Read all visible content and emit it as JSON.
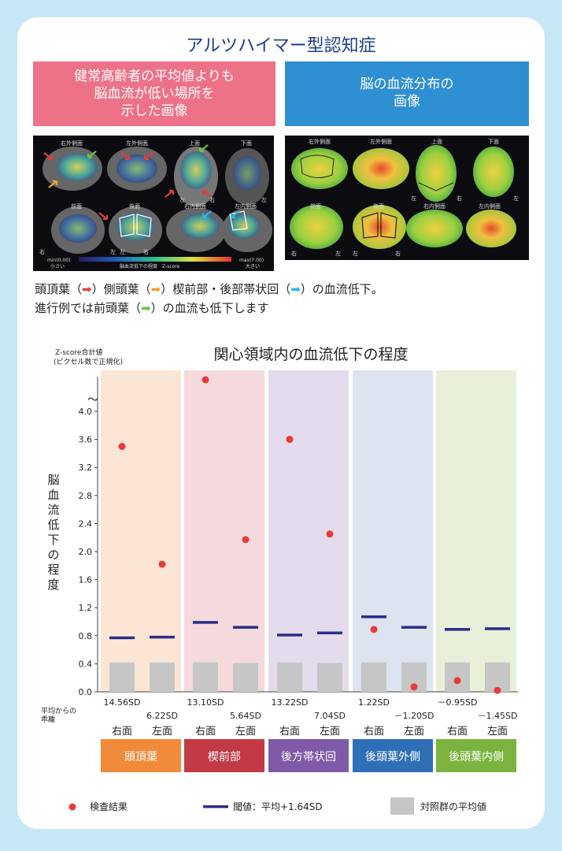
{
  "title": "アルツハイマー型認知症",
  "panel_left": {
    "lines": [
      "健常高齢者の平均値よりも",
      "脳血流が低い場所を",
      "示した画像"
    ]
  },
  "panel_right": {
    "lines": [
      "脳の血流分布の",
      "画像"
    ]
  },
  "left_views": [
    "右外側面",
    "左外側面",
    "上面",
    "下面",
    "前面",
    "後面",
    "右内側面",
    "左内側面"
  ],
  "right_views": [
    "右外側面",
    "左外側面",
    "上面",
    "下面",
    "前面",
    "後面",
    "右内側面",
    "左内側面"
  ],
  "side_labels": {
    "right": "右",
    "left": "左"
  },
  "scale": {
    "min": "min(0.00)",
    "min_sub": "小さい",
    "mid": "脳血流低下の程度　Z-score",
    "max": "max(7.00)",
    "max_sub": "大きい"
  },
  "caption": {
    "line1_parts": [
      "頭頂葉（",
      "➡",
      "）側頭葉（",
      "➡",
      "）楔前部・後部帯状回（",
      "➡",
      "）の血流低下。"
    ],
    "line2_parts": [
      "進行例では前頭葉（",
      "➡",
      "）の血流も低下します"
    ]
  },
  "colors": {
    "result": "#e83a3a",
    "threshold": "#2b2d86",
    "control": "#c6c6c6"
  },
  "chart_data": {
    "type": "scatter",
    "title": "関心領域内の血流低下の程度",
    "ylabel_top": "Z-score合計値",
    "ylabel_top2": "(ピクセル数で正規化)",
    "ylabel": "脳血流低下の程度",
    "ylim": [
      0,
      4.0
    ],
    "yticks": [
      "0.0",
      "0.4",
      "0.8",
      "1.2",
      "1.6",
      "2.0",
      "2.4",
      "2.8",
      "3.2",
      "3.6",
      "4.0"
    ],
    "axis_break": "〜",
    "deviation_label": [
      "平均からの",
      "乖離"
    ],
    "regions": [
      {
        "name": "頭頂葉",
        "bg": "#fbe6d6",
        "label_bg": "#f28a3b"
      },
      {
        "name": "楔前部",
        "bg": "#f4dadc",
        "label_bg": "#c13a45"
      },
      {
        "name": "後方帯状回",
        "bg": "#e4dced",
        "label_bg": "#7e5aa8"
      },
      {
        "name": "後頭葉外側",
        "bg": "#dde4f0",
        "label_bg": "#2f6fb7"
      },
      {
        "name": "後頭葉内側",
        "bg": "#e8f0da",
        "label_bg": "#7ab33e"
      }
    ],
    "sides": [
      "右面",
      "左面",
      "右面",
      "左面",
      "右面",
      "左面",
      "右面",
      "左面",
      "右面",
      "左面"
    ],
    "sd_labels": [
      "14.56SD",
      "6.22SD",
      "13.10SD",
      "5.64SD",
      "13.22SD",
      "7.04SD",
      "1.22SD",
      "－1.20SD",
      "－0.95SD",
      "－1.45SD"
    ],
    "results": [
      3.5,
      1.82,
      4.45,
      2.17,
      3.6,
      2.25,
      0.89,
      0.07,
      0.16,
      0.02
    ],
    "thresholds": [
      0.77,
      0.78,
      0.99,
      0.92,
      0.81,
      0.84,
      1.07,
      0.92,
      0.89,
      0.9
    ],
    "controls": [
      0.42,
      0.42,
      0.42,
      0.41,
      0.42,
      0.41,
      0.42,
      0.42,
      0.42,
      0.42
    ],
    "legend": [
      "検査結果",
      "閾値：平均+1.64SD",
      "対照群の平均値"
    ]
  }
}
